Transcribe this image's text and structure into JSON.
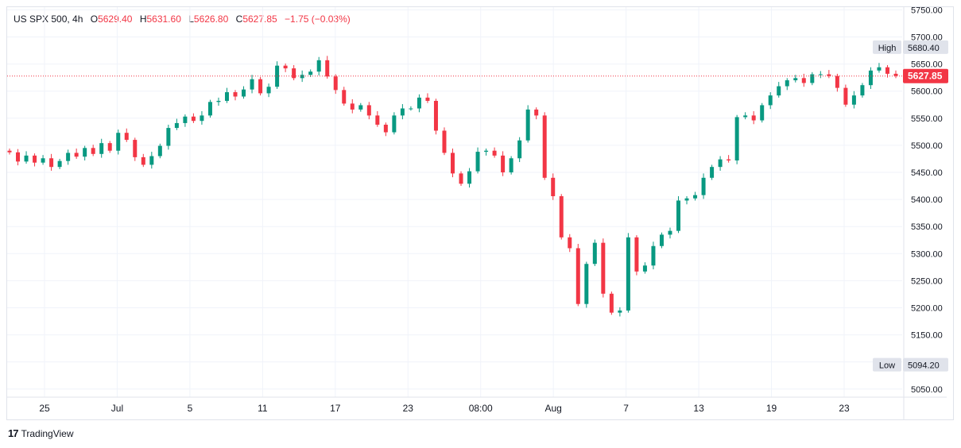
{
  "legend": {
    "symbol": "US SPX 500, 4h",
    "open_label": "O",
    "open": "5629.40",
    "high_label": "H",
    "high": "5631.60",
    "low_label": "L",
    "low": "5626.80",
    "close_label": "C",
    "close": "5627.85",
    "change": "−1.75 (−0.03%)"
  },
  "footer": {
    "logo": "17",
    "brand": "TradingView"
  },
  "colors": {
    "up": "#089981",
    "down": "#f23645",
    "grid": "#f0f3fa",
    "axis_text": "#131722",
    "badge_bg": "#e0e3eb"
  },
  "chart_data": {
    "type": "candlestick",
    "x_ticks": [
      "25",
      "Jul",
      "5",
      "11",
      "17",
      "23",
      "08:00",
      "Aug",
      "7",
      "13",
      "19",
      "23"
    ],
    "y_ticks": [
      "5750.00",
      "5700.00",
      "5650.00",
      "5600.00",
      "5550.00",
      "5500.00",
      "5450.00",
      "5400.00",
      "5350.00",
      "5300.00",
      "5250.00",
      "5200.00",
      "5150.00",
      "5100.00",
      "5050.00"
    ],
    "ylim": [
      5035,
      5755
    ],
    "current_price": "5627.85",
    "high_marker": {
      "label": "High",
      "value": "5680.40"
    },
    "low_marker": {
      "label": "Low",
      "value": "5094.20"
    },
    "grid": true,
    "series": [
      {
        "values": [
          5487,
          5470,
          5481,
          5468,
          5476,
          5460,
          5471,
          5486,
          5479,
          5495,
          5484,
          5504,
          5490,
          5523,
          5510,
          5478,
          5464,
          5480,
          5499,
          5532,
          5541,
          5553,
          5545,
          5555,
          5580,
          5582,
          5598,
          5590,
          5603,
          5622,
          5596,
          5608,
          5647,
          5642,
          5624,
          5630,
          5636,
          5657,
          5627,
          5602,
          5577,
          5566,
          5574,
          5555,
          5538,
          5524,
          5555,
          5568,
          5568,
          5588,
          5582,
          5527,
          5486,
          5448,
          5429,
          5452,
          5488,
          5490,
          5481,
          5450,
          5476,
          5509,
          5566,
          5555,
          5440,
          5406,
          5330,
          5310,
          5207,
          5281,
          5320,
          5226,
          5191,
          5195,
          5330,
          5267,
          5278,
          5314,
          5335,
          5342,
          5398,
          5402,
          5408,
          5440,
          5460,
          5474,
          5472,
          5552,
          5555,
          5546,
          5574,
          5592,
          5609,
          5620,
          5624,
          5615,
          5631,
          5631,
          5628,
          5606,
          5575,
          5592,
          5611,
          5638,
          5644,
          5632,
          5628
        ]
      }
    ]
  }
}
